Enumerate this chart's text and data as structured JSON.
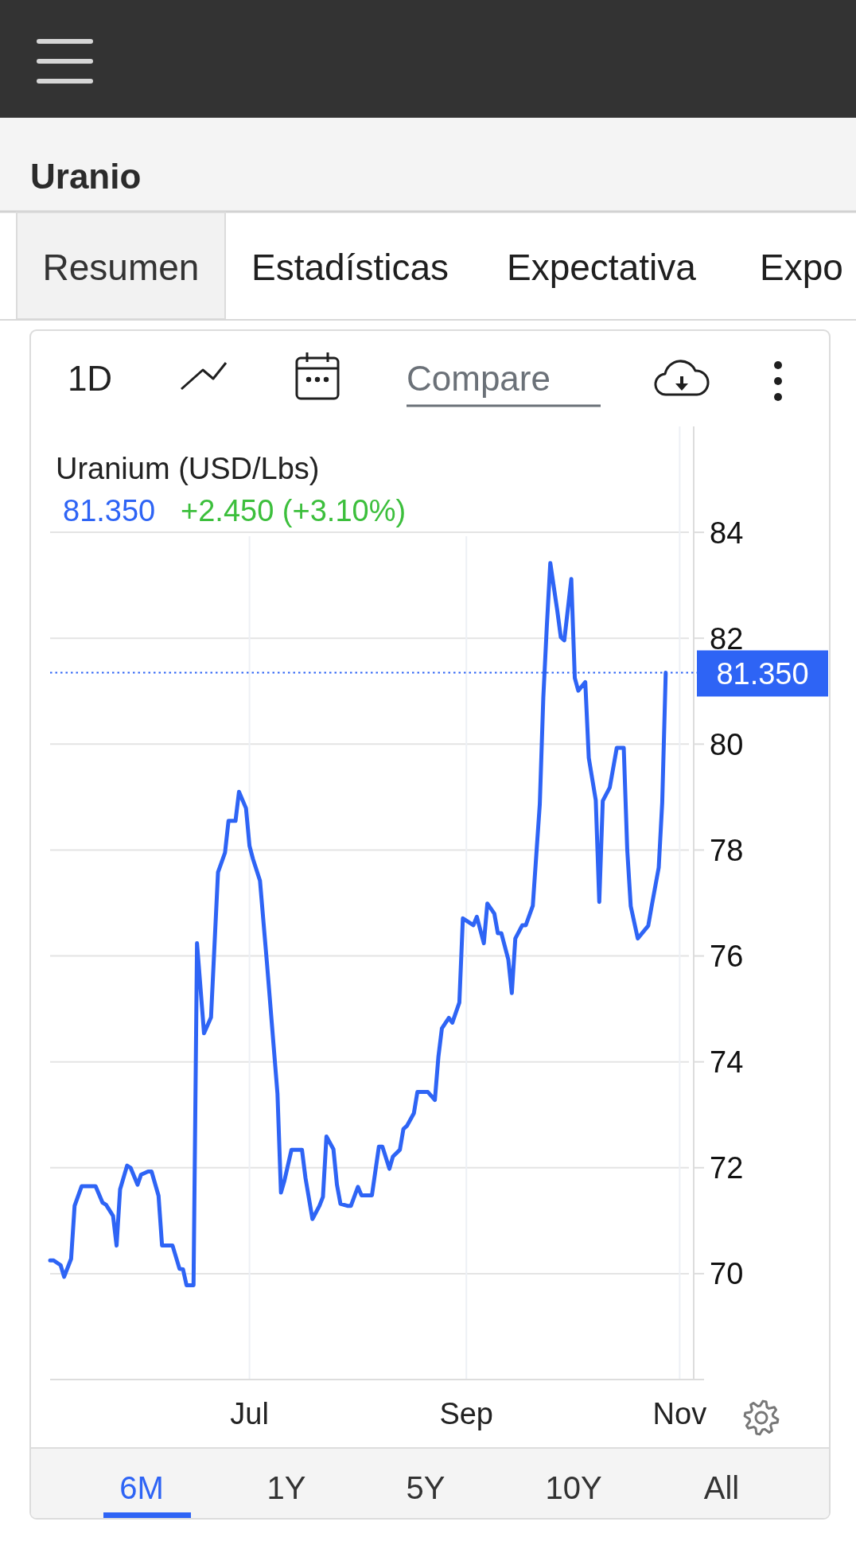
{
  "chart_data": {
    "type": "line",
    "title": "Uranio",
    "subtitle": "Uranium (USD/Lbs)",
    "annotations": [
      "Resumen",
      "Estadísticas",
      "Expectativa",
      "Expo",
      "1D",
      "Compare",
      "81.350",
      "+2.450 (+3.10%)",
      "6M",
      "1Y",
      "5Y",
      "10Y",
      "All"
    ],
    "x": [
      "--05-05",
      "--05-06",
      "--05-08",
      "--05-09",
      "--05-11",
      "--05-12",
      "--05-14",
      "--05-18",
      "--05-20",
      "--05-21",
      "--05-23",
      "--05-24",
      "--05-25",
      "--05-27",
      "--05-28",
      "--05-30",
      "--05-31",
      "--06-02",
      "--06-03",
      "--06-05",
      "--06-06",
      "--06-09",
      "--06-11",
      "--06-12",
      "--06-13",
      "--06-15",
      "--06-16",
      "--06-18",
      "--06-20",
      "--06-22",
      "--06-24",
      "--06-25",
      "--06-27",
      "--06-28",
      "--06-30",
      "--07-01",
      "--07-02",
      "--07-04",
      "--07-06",
      "--07-09",
      "--07-10",
      "--07-11",
      "--07-13",
      "--07-16",
      "--07-17",
      "--07-19",
      "--07-21",
      "--07-22",
      "--07-23",
      "--07-25",
      "--07-26",
      "--07-27",
      "--07-29",
      "--07-30",
      "--08-01",
      "--08-02",
      "--08-05",
      "--08-07",
      "--08-08",
      "--08-10",
      "--08-11",
      "--08-13",
      "--08-14",
      "--08-15",
      "--08-17",
      "--08-18",
      "--08-21",
      "--08-23",
      "--08-24",
      "--08-25",
      "--08-27",
      "--08-28",
      "--08-30",
      "--08-31",
      "--09-03",
      "--09-04",
      "--09-06",
      "--09-07",
      "--09-09",
      "--09-10",
      "--09-11",
      "--09-13",
      "--09-14",
      "--09-15",
      "--09-17",
      "--09-18",
      "--09-20",
      "--09-21",
      "--09-22",
      "--09-23",
      "--09-24",
      "--09-25",
      "--09-27",
      "--09-28",
      "--09-29",
      "--10-01",
      "--10-02",
      "--10-03",
      "--10-05",
      "--10-06",
      "--10-08",
      "--10-09",
      "--10-10",
      "--10-12",
      "--10-14",
      "--10-16",
      "--10-17",
      "--10-18",
      "--10-20",
      "--10-23",
      "--10-24",
      "--10-26",
      "--10-27",
      "--10-28"
    ],
    "values": [
      70.25,
      70.25,
      70.16,
      69.94,
      70.28,
      71.28,
      71.65,
      71.65,
      71.34,
      71.3,
      71.09,
      70.53,
      71.59,
      72.04,
      72.0,
      71.68,
      71.87,
      71.93,
      71.93,
      71.47,
      70.53,
      70.53,
      70.09,
      70.08,
      69.78,
      69.78,
      76.24,
      74.54,
      74.84,
      77.58,
      77.95,
      78.55,
      78.55,
      79.1,
      78.79,
      78.08,
      77.83,
      77.42,
      75.86,
      73.4,
      71.53,
      71.76,
      72.34,
      72.34,
      71.81,
      71.03,
      71.28,
      71.45,
      72.59,
      72.35,
      71.68,
      71.32,
      71.28,
      71.28,
      71.64,
      71.48,
      71.48,
      72.4,
      72.4,
      71.98,
      72.21,
      72.34,
      72.73,
      72.79,
      73.03,
      73.43,
      73.43,
      73.28,
      74.09,
      74.63,
      74.83,
      74.74,
      75.12,
      76.71,
      76.58,
      76.74,
      76.24,
      76.99,
      76.8,
      76.43,
      76.43,
      75.93,
      75.3,
      76.33,
      76.58,
      76.58,
      76.95,
      77.91,
      78.87,
      80.88,
      82.22,
      83.42,
      82.52,
      82.02,
      81.96,
      83.12,
      81.25,
      81.01,
      81.17,
      79.74,
      78.94,
      77.02,
      78.93,
      79.18,
      79.93,
      79.93,
      78.0,
      76.94,
      76.33,
      76.57,
      76.95,
      77.67,
      78.9,
      81.35
    ],
    "color": "#2e64f5",
    "xlim": [
      "--05-05",
      "--11-05"
    ],
    "xticks": [
      {
        "value": "--07-01",
        "label": "Jul"
      },
      {
        "value": "--09-01",
        "label": "Sep"
      },
      {
        "value": "--11-01",
        "label": "Nov"
      }
    ],
    "ylim": [
      68,
      86
    ],
    "yticks": [
      70,
      72,
      74,
      76,
      78,
      80,
      82,
      84
    ],
    "grid": true,
    "ref_lines": [
      {
        "axis": "y",
        "value": 81.35,
        "label": "81.350",
        "color": "#2e64f5",
        "line_style": "dotted"
      }
    ]
  }
}
